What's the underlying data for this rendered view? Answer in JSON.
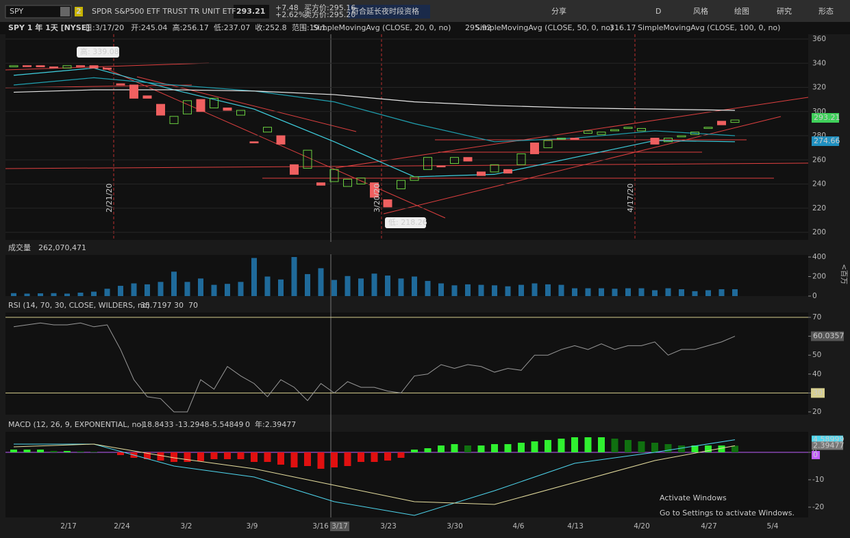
{
  "header": {
    "symbol": "SPY",
    "badge": "2",
    "name": "SPDR S&P500 ETF TRUST TR UNIT ETF",
    "price": "293.21",
    "change": "+7.48",
    "change_pct": "+2.62%",
    "bid": "买方价:295.16",
    "ask": "卖方价:295.20",
    "note": "符合延长夜时段资格",
    "tools": [
      "分享",
      "D",
      "风格",
      "绘图",
      "研究",
      "形态"
    ]
  },
  "info": {
    "title": "SPY 1 年 1天 [NYSE]",
    "fields": [
      "日:3/17/20",
      "开:245.04",
      "高:256.17",
      "低:237.07",
      "收:252.8",
      "范围:19.1"
    ],
    "studies": [
      "SimpleMovingAvg (CLOSE, 20, 0, no)",
      "295.92",
      "SimpleMovingAvg (CLOSE, 50, 0, no)",
      "316.17",
      "SimpleMovingAvg (CLOSE, 100, 0, no)"
    ]
  },
  "price": {
    "ylim": [
      200,
      360
    ],
    "yticks": [
      360,
      340,
      320,
      300,
      280,
      260,
      240,
      220,
      200
    ],
    "tags": [
      "293.21",
      "274.66"
    ],
    "annotations": [
      "高: 339.08",
      "低: 218.26"
    ],
    "date_marks": [
      "2/21/20",
      "3/20/20",
      "4/17/20"
    ],
    "open": [
      337,
      338,
      338,
      337,
      336,
      338,
      338,
      336,
      323,
      322,
      313,
      306,
      290,
      298,
      310,
      303,
      303,
      297,
      275,
      283,
      280,
      256,
      253,
      241,
      242,
      238,
      240,
      241,
      227,
      236,
      243,
      252,
      255,
      257,
      262,
      250,
      250,
      252,
      256,
      274,
      270,
      277,
      278,
      282,
      281,
      284,
      286,
      284,
      278,
      275,
      279,
      281,
      286,
      292,
      291
    ],
    "close": [
      338,
      338,
      337,
      336,
      338,
      338,
      336,
      335,
      322,
      311,
      311,
      297,
      296,
      309,
      300,
      311,
      301,
      301,
      274,
      287,
      273,
      248,
      268,
      239,
      252,
      244,
      245,
      229,
      221,
      243,
      246,
      262,
      255,
      262,
      259,
      247,
      256,
      249,
      265,
      265,
      276,
      278,
      277,
      284,
      283,
      285,
      287,
      286,
      273,
      278,
      280,
      283,
      287,
      289,
      293
    ],
    "ma_x": [
      0,
      6,
      12,
      18,
      24,
      30,
      36,
      42,
      48,
      54
    ],
    "ma": [
      {
        "name": "SMA20",
        "color": "#3fd0e0",
        "values": [
          330,
          336,
          318,
          302,
          275,
          246,
          248,
          262,
          276,
          275
        ]
      },
      {
        "name": "SMA50",
        "color": "#20a0b0",
        "values": [
          322,
          328,
          322,
          317,
          308,
          290,
          275,
          278,
          284,
          280
        ]
      },
      {
        "name": "SMA100",
        "color": "#e8e8e8",
        "values": [
          316,
          318,
          318,
          317,
          314,
          308,
          305,
          303,
          302,
          301
        ]
      }
    ]
  },
  "volume": {
    "label": "成交量",
    "value": "262,070,471",
    "unit": "<百万",
    "ylim": [
      0,
      400
    ],
    "yticks": [
      400,
      200,
      0
    ],
    "values": [
      30,
      25,
      28,
      30,
      25,
      35,
      45,
      75,
      105,
      130,
      120,
      145,
      250,
      145,
      180,
      115,
      125,
      145,
      390,
      200,
      170,
      400,
      225,
      285,
      165,
      205,
      180,
      230,
      210,
      180,
      200,
      155,
      130,
      110,
      120,
      115,
      110,
      100,
      115,
      130,
      120,
      115,
      80,
      80,
      80,
      75,
      80,
      80,
      60,
      80,
      70,
      50,
      60,
      70,
      70
    ]
  },
  "rsi": {
    "label": "RSI (14, 70, 30, CLOSE, WILDERS, no)",
    "fields": [
      "35.7197",
      "30",
      "70"
    ],
    "ylim": [
      15,
      75
    ],
    "yticks": [
      70,
      60,
      50,
      40,
      30,
      20
    ],
    "tags": [
      "60.0357",
      "30"
    ],
    "values": [
      65,
      66,
      67,
      66,
      66,
      67,
      65,
      66,
      53,
      37,
      28,
      27,
      20,
      20,
      37,
      32,
      44,
      39,
      35,
      28,
      37,
      33,
      26,
      35,
      30,
      36,
      33,
      33,
      31,
      30,
      39,
      40,
      45,
      43,
      45,
      44,
      41,
      43,
      42,
      50,
      50,
      53,
      55,
      53,
      56,
      53,
      55,
      55,
      57,
      50,
      53,
      53,
      55,
      57,
      60
    ]
  },
  "macd": {
    "label": "MACD (12, 26, 9, EXPONENTIAL, no)",
    "fields": [
      "-18.8433",
      "-13.2948",
      "-5.54849",
      "0",
      "年:2.39477"
    ],
    "ylim": [
      -24,
      7
    ],
    "yticks": [
      0,
      -10,
      -20
    ],
    "tags": [
      "4.58999",
      "2.39477",
      "0"
    ],
    "hist": [
      1,
      1,
      1,
      0.5,
      0.5,
      0.3,
      0.2,
      0,
      -1,
      -2,
      -2.5,
      -3,
      -3.5,
      -3.5,
      -3.2,
      -2.5,
      -2.5,
      -2.5,
      -3.5,
      -3.5,
      -4.5,
      -5.5,
      -5,
      -6,
      -5.5,
      -5,
      -3.5,
      -3.5,
      -3,
      -2,
      1,
      1.5,
      2.5,
      3,
      2.5,
      2.5,
      3,
      3,
      3.5,
      4,
      4.5,
      5,
      5.5,
      5.5,
      5.5,
      5,
      4.5,
      4,
      3.5,
      3,
      2.5,
      2.5,
      2.5,
      2.5,
      2.4
    ],
    "line_x": [
      0,
      6,
      12,
      18,
      24,
      30,
      36,
      42,
      48,
      54
    ],
    "macd": [
      3,
      3,
      -5,
      -9,
      -18,
      -23,
      -14,
      -4,
      0,
      4.6
    ],
    "signal": [
      2,
      3,
      -2,
      -6,
      -12,
      -18,
      -19,
      -11,
      -3,
      2.4
    ]
  },
  "x_axis": {
    "labels": [
      "2/17",
      "2/24",
      "3/2",
      "3/9",
      "3/16",
      "3/17",
      "3/23",
      "3/30",
      "4/6",
      "4/13",
      "4/20",
      "4/27",
      "5/4"
    ]
  },
  "watermark": [
    "Activate Windows",
    "Go to Settings to activate Windows."
  ]
}
